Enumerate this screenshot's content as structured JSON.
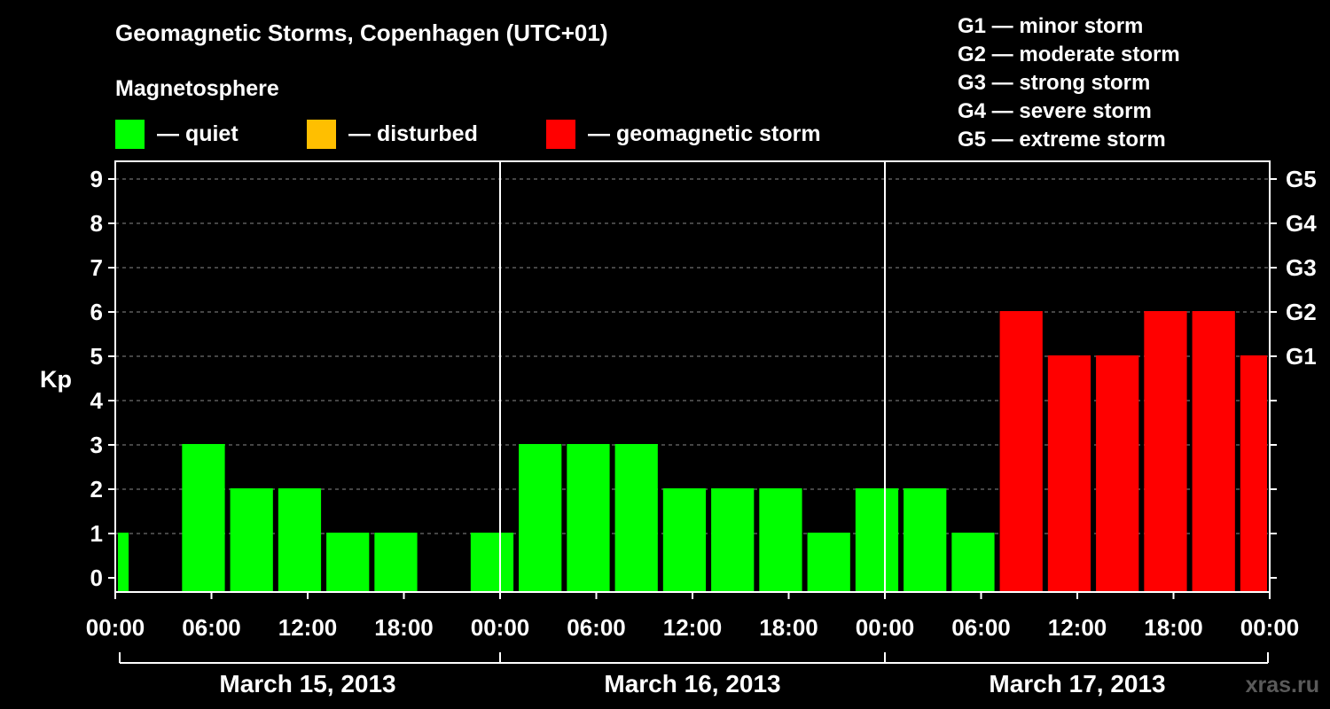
{
  "title": "Geomagnetic Storms, Copenhagen (UTC+01)",
  "magnetosphere_label": "Magnetosphere",
  "legend": [
    {
      "label": "— quiet",
      "color": "#00ff00"
    },
    {
      "label": "— disturbed",
      "color": "#ffbf00"
    },
    {
      "label": "— geomagnetic storm",
      "color": "#ff0000"
    }
  ],
  "storm_scale": [
    "G1 — minor storm",
    "G2 — moderate storm",
    "G3 — strong storm",
    "G4 — severe storm",
    "G5 — extreme storm"
  ],
  "watermark": "xras.ru",
  "colors": {
    "quiet": "#00ff00",
    "disturbed": "#ffbf00",
    "storm": "#ff0000",
    "axis": "#ffffff",
    "grid": "#8a8a8a"
  },
  "chart_data": {
    "type": "bar",
    "title": "Geomagnetic Storms, Copenhagen (UTC+01)",
    "ylabel": "Kp",
    "ylim": [
      0,
      9
    ],
    "yticks": [
      "0",
      "1",
      "2",
      "3",
      "4",
      "5",
      "6",
      "7",
      "8",
      "9"
    ],
    "right_ticks": [
      {
        "value": 5,
        "label": "G1"
      },
      {
        "value": 6,
        "label": "G2"
      },
      {
        "value": 7,
        "label": "G3"
      },
      {
        "value": 8,
        "label": "G4"
      },
      {
        "value": 9,
        "label": "G5"
      }
    ],
    "x_range_hours": [
      0,
      72
    ],
    "xticks": [
      "00:00",
      "06:00",
      "12:00",
      "18:00",
      "00:00",
      "06:00",
      "12:00",
      "18:00",
      "00:00",
      "06:00",
      "12:00",
      "18:00",
      "00:00"
    ],
    "days": [
      "March 15, 2013",
      "March 16, 2013",
      "March 17, 2013"
    ],
    "bars": [
      {
        "start": 0,
        "end": 1,
        "kp": 1,
        "level": "quiet"
      },
      {
        "start": 4,
        "end": 7,
        "kp": 3,
        "level": "quiet"
      },
      {
        "start": 7,
        "end": 10,
        "kp": 2,
        "level": "quiet"
      },
      {
        "start": 10,
        "end": 13,
        "kp": 2,
        "level": "quiet"
      },
      {
        "start": 13,
        "end": 16,
        "kp": 1,
        "level": "quiet"
      },
      {
        "start": 16,
        "end": 19,
        "kp": 1,
        "level": "quiet"
      },
      {
        "start": 22,
        "end": 25,
        "kp": 1,
        "level": "quiet"
      },
      {
        "start": 25,
        "end": 28,
        "kp": 3,
        "level": "quiet"
      },
      {
        "start": 28,
        "end": 31,
        "kp": 3,
        "level": "quiet"
      },
      {
        "start": 31,
        "end": 34,
        "kp": 3,
        "level": "quiet"
      },
      {
        "start": 34,
        "end": 37,
        "kp": 2,
        "level": "quiet"
      },
      {
        "start": 37,
        "end": 40,
        "kp": 2,
        "level": "quiet"
      },
      {
        "start": 40,
        "end": 43,
        "kp": 2,
        "level": "quiet"
      },
      {
        "start": 43,
        "end": 46,
        "kp": 1,
        "level": "quiet"
      },
      {
        "start": 46,
        "end": 49,
        "kp": 2,
        "level": "quiet"
      },
      {
        "start": 49,
        "end": 52,
        "kp": 2,
        "level": "quiet"
      },
      {
        "start": 52,
        "end": 55,
        "kp": 1,
        "level": "quiet"
      },
      {
        "start": 55,
        "end": 58,
        "kp": 6,
        "level": "storm"
      },
      {
        "start": 58,
        "end": 61,
        "kp": 5,
        "level": "storm"
      },
      {
        "start": 61,
        "end": 64,
        "kp": 5,
        "level": "storm"
      },
      {
        "start": 64,
        "end": 67,
        "kp": 6,
        "level": "storm"
      },
      {
        "start": 67,
        "end": 70,
        "kp": 6,
        "level": "storm"
      },
      {
        "start": 70,
        "end": 72,
        "kp": 5,
        "level": "storm"
      }
    ]
  }
}
